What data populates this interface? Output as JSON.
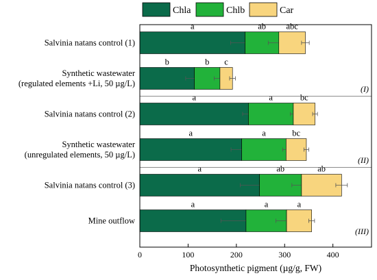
{
  "chart_data": {
    "type": "bar",
    "orientation": "horizontal",
    "stacked": true,
    "xlabel": "Photosynthetic pigment (µg/g, FW)",
    "xlim": [
      0,
      480
    ],
    "xticks": [
      0,
      100,
      200,
      300,
      400
    ],
    "legend_position": "top",
    "grid": false,
    "series": [
      {
        "name": "Chla",
        "color": "#0b6b4a",
        "values": [
          218,
          113,
          225,
          211,
          248,
          220
        ],
        "errors": [
          30,
          18,
          12,
          22,
          40,
          52
        ]
      },
      {
        "name": "Chlb",
        "color": "#22b23a",
        "values": [
          70,
          53,
          93,
          92,
          87,
          84
        ],
        "errors": [
          22,
          12,
          6,
          7,
          20,
          22
        ]
      },
      {
        "name": "Car",
        "color": "#f8d57e",
        "values": [
          55,
          26,
          45,
          42,
          83,
          52
        ],
        "errors": [
          8,
          6,
          5,
          5,
          12,
          6
        ]
      }
    ],
    "categories": [
      {
        "lines": [
          "Salvinia natans control (1)"
        ]
      },
      {
        "lines": [
          "Synthetic wastewater",
          "(regulated elements +Li, 50  µg/L)"
        ]
      },
      {
        "lines": [
          "Salvinia natans control (2)"
        ]
      },
      {
        "lines": [
          "Synthetic wastewater",
          "(unregulated elements, 50  µg/L)"
        ]
      },
      {
        "lines": [
          "Salvinia natans control (3)"
        ]
      },
      {
        "lines": [
          "Mine outflow"
        ]
      }
    ],
    "significance_letters": [
      [
        "a",
        "ab",
        "abc"
      ],
      [
        "b",
        "b",
        "c"
      ],
      [
        "a",
        "a",
        "bc"
      ],
      [
        "a",
        "a",
        "bc"
      ],
      [
        "a",
        "ab",
        "ab"
      ],
      [
        "a",
        "a",
        "a"
      ]
    ],
    "group_labels": [
      "(I)",
      "(II)",
      "(III)"
    ]
  }
}
